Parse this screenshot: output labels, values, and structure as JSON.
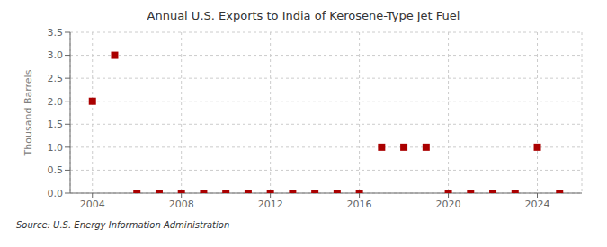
{
  "chart_data": {
    "type": "scatter",
    "title": "Annual U.S. Exports to India of Kerosene-Type Jet Fuel",
    "y_label": "Thousand Barrels",
    "annotations": [
      "Source: U.S. Energy Information Administration"
    ],
    "x": [
      2004,
      2005,
      2006,
      2007,
      2008,
      2009,
      2010,
      2011,
      2012,
      2013,
      2014,
      2015,
      2016,
      2017,
      2018,
      2019,
      2020,
      2021,
      2022,
      2023,
      2024,
      2025
    ],
    "values": [
      2,
      3,
      0,
      0,
      0,
      0,
      0,
      0,
      0,
      0,
      0,
      0,
      0,
      1,
      1,
      1,
      0,
      0,
      0,
      0,
      1,
      0
    ],
    "color": "#aa0000",
    "marker": "square",
    "xlim": [
      2003.0,
      2026.0
    ],
    "ylim": [
      0.0,
      3.5
    ],
    "xticks": [
      2004,
      2008,
      2012,
      2016,
      2020,
      2024
    ],
    "yticks": [
      {
        "value": 0.0,
        "label": "0.0"
      },
      {
        "value": 0.5,
        "label": "0.5"
      },
      {
        "value": 1.0,
        "label": "1.0"
      },
      {
        "value": 1.5,
        "label": "1.5"
      },
      {
        "value": 2.0,
        "label": "2.0"
      },
      {
        "value": 2.5,
        "label": "2.5"
      },
      {
        "value": 3.0,
        "label": "3.0"
      },
      {
        "value": 3.5,
        "label": "3.5"
      }
    ],
    "grid": true
  }
}
